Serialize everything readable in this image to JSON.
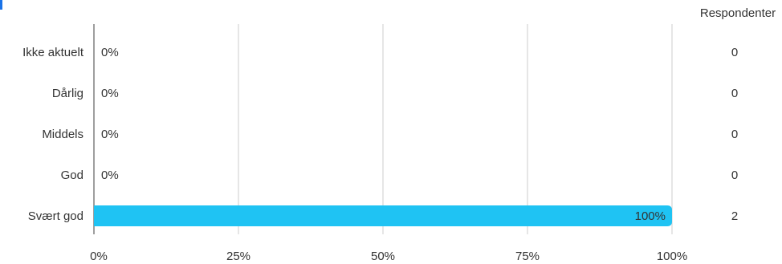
{
  "chart_data": {
    "type": "bar",
    "orientation": "horizontal",
    "categories": [
      "Ikke aktuelt",
      "Dårlig",
      "Middels",
      "God",
      "Svært god"
    ],
    "values": [
      0,
      0,
      0,
      0,
      100
    ],
    "value_labels": [
      "0%",
      "0%",
      "0%",
      "0%",
      "100%"
    ],
    "respondents_header": "Respondenter",
    "respondents": [
      "0",
      "0",
      "0",
      "0",
      "2"
    ],
    "xticks": [
      "0%",
      "25%",
      "50%",
      "75%",
      "100%"
    ],
    "xlim": [
      0,
      100
    ],
    "grid": true,
    "bar_color": "#1fc3f3"
  }
}
